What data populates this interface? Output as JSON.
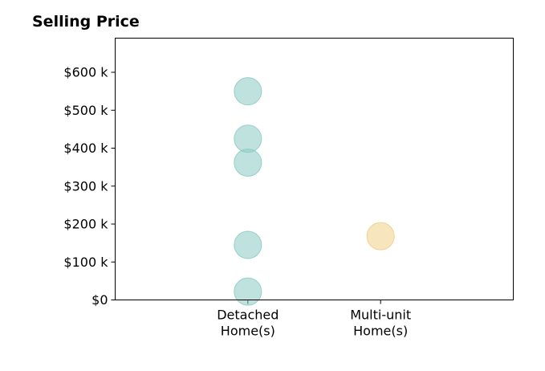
{
  "chart_data": {
    "type": "scatter",
    "title": "Selling Price",
    "categories": [
      "Detached\nHome(s)",
      "Multi-unit\nHome(s)"
    ],
    "y_ticks": [
      {
        "value": 0,
        "label": "$0"
      },
      {
        "value": 100000,
        "label": "$100 k"
      },
      {
        "value": 200000,
        "label": "$200 k"
      },
      {
        "value": 300000,
        "label": "$300 k"
      },
      {
        "value": 400000,
        "label": "$400 k"
      },
      {
        "value": 500000,
        "label": "$500 k"
      },
      {
        "value": 600000,
        "label": "$600 k"
      }
    ],
    "ylim": [
      0,
      690000
    ],
    "xlim": [
      -1,
      2
    ],
    "grid": false,
    "series": [
      {
        "category": 0,
        "color": "#8dcbc4",
        "values": [
          550000,
          425000,
          362000,
          145000,
          22000
        ]
      },
      {
        "category": 1,
        "color": "#efcf86",
        "values": [
          168000
        ]
      }
    ]
  }
}
